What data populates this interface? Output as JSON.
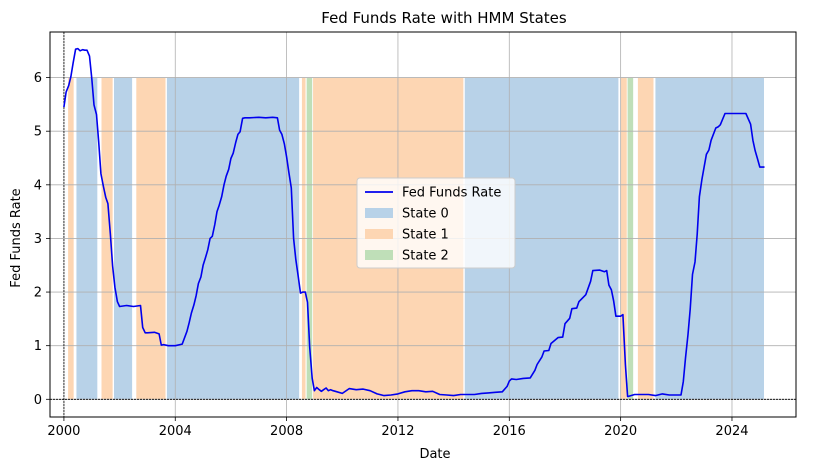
{
  "chart_data": {
    "type": "line",
    "title": "Fed Funds Rate with HMM States",
    "xlabel": "Date",
    "ylabel": "Fed Funds Rate",
    "xlim": [
      1999.5,
      2026.3
    ],
    "ylim": [
      -0.33,
      6.85
    ],
    "grid": true,
    "legend_position": "center",
    "x_ticks": [
      2000,
      2004,
      2008,
      2012,
      2016,
      2020,
      2024
    ],
    "y_ticks": [
      0,
      1,
      2,
      3,
      4,
      5,
      6
    ],
    "x_tick_labels": [
      "2000",
      "2004",
      "2008",
      "2012",
      "2016",
      "2020",
      "2024"
    ],
    "y_tick_labels": [
      "0",
      "1",
      "2",
      "3",
      "4",
      "5",
      "6"
    ],
    "reference_lines": {
      "x": 2000,
      "y": 0
    },
    "state_band_height": 6,
    "colors": {
      "line": "#0000ee",
      "state_0": "#b8d2e8",
      "state_1": "#fdd6b3",
      "state_2": "#bfdfb8",
      "grid": "#b0b0b0"
    },
    "series": [
      {
        "name": "Fed Funds Rate",
        "x": [
          2000.0,
          2000.08,
          2000.17,
          2000.25,
          2000.33,
          2000.42,
          2000.5,
          2000.58,
          2000.67,
          2000.75,
          2000.83,
          2000.92,
          2001.0,
          2001.08,
          2001.17,
          2001.25,
          2001.33,
          2001.42,
          2001.5,
          2001.58,
          2001.67,
          2001.75,
          2001.83,
          2001.92,
          2002.0,
          2002.25,
          2002.5,
          2002.75,
          2002.83,
          2002.92,
          2003.0,
          2003.25,
          2003.42,
          2003.5,
          2003.58,
          2003.75,
          2004.0,
          2004.25,
          2004.42,
          2004.5,
          2004.58,
          2004.67,
          2004.75,
          2004.83,
          2004.92,
          2005.0,
          2005.08,
          2005.17,
          2005.25,
          2005.33,
          2005.42,
          2005.5,
          2005.58,
          2005.67,
          2005.75,
          2005.83,
          2005.92,
          2006.0,
          2006.08,
          2006.17,
          2006.25,
          2006.33,
          2006.42,
          2006.5,
          2006.67,
          2007.0,
          2007.25,
          2007.5,
          2007.67,
          2007.75,
          2007.83,
          2007.92,
          2008.0,
          2008.08,
          2008.17,
          2008.25,
          2008.33,
          2008.42,
          2008.5,
          2008.58,
          2008.67,
          2008.75,
          2008.83,
          2008.92,
          2009.0,
          2009.08,
          2009.17,
          2009.25,
          2009.33,
          2009.42,
          2009.5,
          2009.58,
          2009.67,
          2009.75,
          2010.0,
          2010.25,
          2010.5,
          2010.75,
          2011.0,
          2011.25,
          2011.5,
          2011.75,
          2012.0,
          2012.25,
          2012.5,
          2012.75,
          2013.0,
          2013.25,
          2013.5,
          2013.75,
          2014.0,
          2014.25,
          2014.5,
          2014.75,
          2015.0,
          2015.25,
          2015.5,
          2015.75,
          2015.92,
          2016.0,
          2016.08,
          2016.25,
          2016.5,
          2016.75,
          2016.92,
          2017.0,
          2017.17,
          2017.25,
          2017.42,
          2017.5,
          2017.75,
          2017.92,
          2018.0,
          2018.17,
          2018.25,
          2018.42,
          2018.5,
          2018.67,
          2018.75,
          2018.92,
          2019.0,
          2019.25,
          2019.42,
          2019.5,
          2019.58,
          2019.67,
          2019.75,
          2019.83,
          2019.92,
          2020.0,
          2020.08,
          2020.17,
          2020.25,
          2020.5,
          2020.75,
          2021.0,
          2021.25,
          2021.5,
          2021.75,
          2022.0,
          2022.17,
          2022.25,
          2022.33,
          2022.42,
          2022.5,
          2022.58,
          2022.67,
          2022.75,
          2022.83,
          2022.92,
          2023.0,
          2023.08,
          2023.17,
          2023.25,
          2023.42,
          2023.5,
          2023.58,
          2023.75,
          2024.0,
          2024.25,
          2024.5,
          2024.67,
          2024.75,
          2024.83,
          2024.92,
          2025.0,
          2025.17
        ],
        "values": [
          5.45,
          5.73,
          5.85,
          6.02,
          6.27,
          6.53,
          6.54,
          6.5,
          6.52,
          6.51,
          6.51,
          6.4,
          5.98,
          5.49,
          5.31,
          4.8,
          4.21,
          3.97,
          3.77,
          3.65,
          3.07,
          2.49,
          2.09,
          1.82,
          1.73,
          1.75,
          1.73,
          1.75,
          1.34,
          1.24,
          1.24,
          1.25,
          1.22,
          1.01,
          1.02,
          1.0,
          1.0,
          1.03,
          1.27,
          1.43,
          1.61,
          1.76,
          1.93,
          2.16,
          2.28,
          2.5,
          2.63,
          2.79,
          3.0,
          3.04,
          3.26,
          3.5,
          3.62,
          3.78,
          4.0,
          4.16,
          4.29,
          4.49,
          4.59,
          4.79,
          4.94,
          4.99,
          5.24,
          5.25,
          5.25,
          5.26,
          5.25,
          5.26,
          5.25,
          5.02,
          4.94,
          4.76,
          4.52,
          4.24,
          3.94,
          3.0,
          2.61,
          2.28,
          1.98,
          2.0,
          2.0,
          1.81,
          0.97,
          0.39,
          0.16,
          0.22,
          0.18,
          0.15,
          0.18,
          0.21,
          0.16,
          0.18,
          0.16,
          0.15,
          0.11,
          0.2,
          0.18,
          0.19,
          0.16,
          0.1,
          0.07,
          0.08,
          0.1,
          0.14,
          0.16,
          0.16,
          0.14,
          0.15,
          0.09,
          0.08,
          0.07,
          0.09,
          0.09,
          0.09,
          0.11,
          0.12,
          0.13,
          0.14,
          0.24,
          0.34,
          0.38,
          0.37,
          0.39,
          0.4,
          0.54,
          0.65,
          0.79,
          0.9,
          0.91,
          1.04,
          1.15,
          1.16,
          1.41,
          1.51,
          1.69,
          1.7,
          1.82,
          1.91,
          1.95,
          2.2,
          2.4,
          2.41,
          2.38,
          2.4,
          2.13,
          2.04,
          1.83,
          1.55,
          1.55,
          1.55,
          1.58,
          0.65,
          0.05,
          0.09,
          0.09,
          0.09,
          0.07,
          0.1,
          0.08,
          0.08,
          0.08,
          0.33,
          0.77,
          1.21,
          1.68,
          2.33,
          2.56,
          3.08,
          3.78,
          4.1,
          4.33,
          4.57,
          4.65,
          4.83,
          5.06,
          5.08,
          5.12,
          5.33,
          5.33,
          5.33,
          5.33,
          5.13,
          4.83,
          4.64,
          4.48,
          4.33,
          4.33
        ]
      }
    ],
    "states": [
      {
        "state": 0,
        "start": 2000.45,
        "end": 2001.2
      },
      {
        "state": 0,
        "start": 2001.8,
        "end": 2002.45
      },
      {
        "state": 0,
        "start": 2003.7,
        "end": 2008.45
      },
      {
        "state": 0,
        "start": 2014.4,
        "end": 2019.92
      },
      {
        "state": 0,
        "start": 2021.25,
        "end": 2025.15
      },
      {
        "state": 1,
        "start": 2000.15,
        "end": 2000.35
      },
      {
        "state": 1,
        "start": 2001.35,
        "end": 2001.75
      },
      {
        "state": 1,
        "start": 2002.6,
        "end": 2003.65
      },
      {
        "state": 1,
        "start": 2008.95,
        "end": 2014.35
      },
      {
        "state": 1,
        "start": 2020.62,
        "end": 2021.18
      },
      {
        "state": 1,
        "start": 2008.55,
        "end": 2008.68
      },
      {
        "state": 1,
        "start": 2020.0,
        "end": 2020.22
      },
      {
        "state": 2,
        "start": 2008.72,
        "end": 2008.92
      },
      {
        "state": 2,
        "start": 2020.25,
        "end": 2020.45
      }
    ],
    "legend": [
      {
        "key": "line",
        "label": "Fed Funds Rate"
      },
      {
        "key": "state_0",
        "label": "State 0"
      },
      {
        "key": "state_1",
        "label": "State 1"
      },
      {
        "key": "state_2",
        "label": "State 2"
      }
    ]
  }
}
